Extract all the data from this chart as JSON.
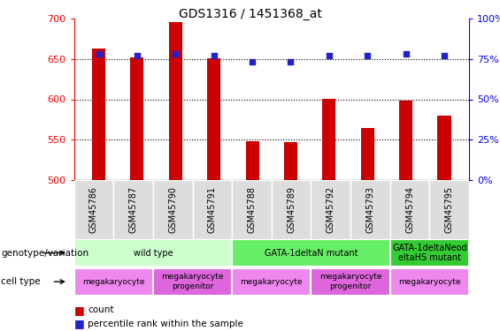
{
  "title": "GDS1316 / 1451368_at",
  "samples": [
    "GSM45786",
    "GSM45787",
    "GSM45790",
    "GSM45791",
    "GSM45788",
    "GSM45789",
    "GSM45792",
    "GSM45793",
    "GSM45794",
    "GSM45795"
  ],
  "counts": [
    663,
    652,
    695,
    651,
    548,
    547,
    601,
    565,
    598,
    580
  ],
  "percentile_ranks": [
    78,
    77,
    78,
    77,
    73,
    73,
    77,
    77,
    78,
    77
  ],
  "ymin": 500,
  "ymax": 700,
  "yticks": [
    500,
    550,
    600,
    650,
    700
  ],
  "y2min": 0,
  "y2max": 100,
  "y2ticks": [
    0,
    25,
    50,
    75,
    100
  ],
  "bar_color": "#cc0000",
  "dot_color": "#2222cc",
  "genotype_groups": [
    {
      "label": "wild type",
      "start": 0,
      "end": 4,
      "color": "#ccffcc"
    },
    {
      "label": "GATA-1deltaN mutant",
      "start": 4,
      "end": 8,
      "color": "#66ee66"
    },
    {
      "label": "GATA-1deltaNeod\neltaHS mutant",
      "start": 8,
      "end": 10,
      "color": "#33cc33"
    }
  ],
  "cell_groups": [
    {
      "label": "megakaryocyte",
      "start": 0,
      "end": 2,
      "color": "#ee88ee"
    },
    {
      "label": "megakaryocyte\nprogenitor",
      "start": 2,
      "end": 4,
      "color": "#dd66dd"
    },
    {
      "label": "megakaryocyte",
      "start": 4,
      "end": 6,
      "color": "#ee88ee"
    },
    {
      "label": "megakaryocyte\nprogenitor",
      "start": 6,
      "end": 8,
      "color": "#dd66dd"
    },
    {
      "label": "megakaryocyte",
      "start": 8,
      "end": 10,
      "color": "#ee88ee"
    }
  ],
  "background_color": "#ffffff",
  "plot_bg": "#ffffff",
  "tick_label_bg": "#dddddd"
}
